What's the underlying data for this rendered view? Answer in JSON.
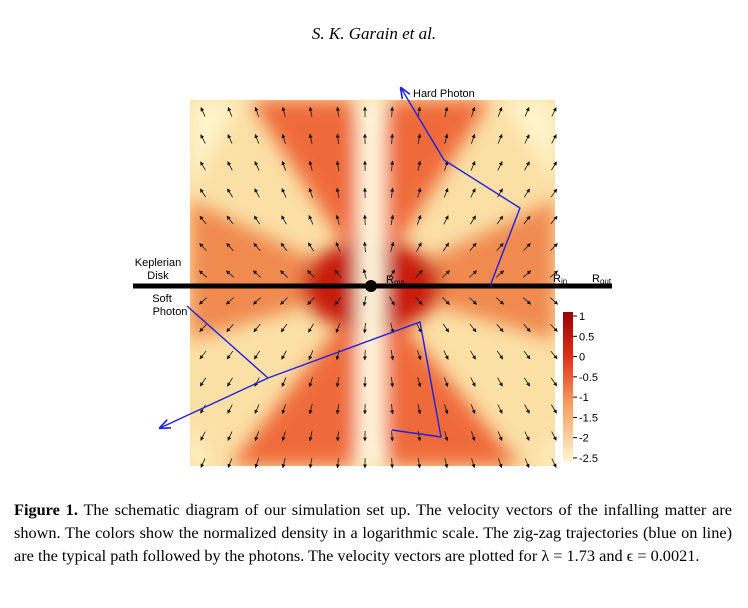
{
  "header": {
    "running_title": "S. K. Garain et al."
  },
  "figure": {
    "labels": {
      "hard_photon": "Hard Photon",
      "keplerian_disk": [
        "Keplerian",
        "Disk"
      ],
      "soft_photon": [
        "Soft",
        "Photon"
      ],
      "r_ms": {
        "symbol": "R",
        "subscript": "ms"
      },
      "r_in": {
        "symbol": "R",
        "subscript": "in"
      },
      "r_out": {
        "symbol": "R",
        "subscript": "out"
      }
    },
    "colorbar": {
      "lim": [
        -2.6,
        1.1
      ],
      "ticks": [
        1,
        0.5,
        0,
        -0.5,
        -1,
        -1.5,
        -2,
        -2.5
      ]
    }
  },
  "caption": {
    "label": "Figure 1.",
    "text": "The schematic diagram of our simulation set up. The velocity vectors of the infalling matter are shown. The colors show the normalized density in a logarithmic scale. The zig-zag trajectories (blue on line) are the typical path followed by the photons. The velocity vectors are plotted for λ = 1.73 and ϵ = 0.0021."
  }
}
